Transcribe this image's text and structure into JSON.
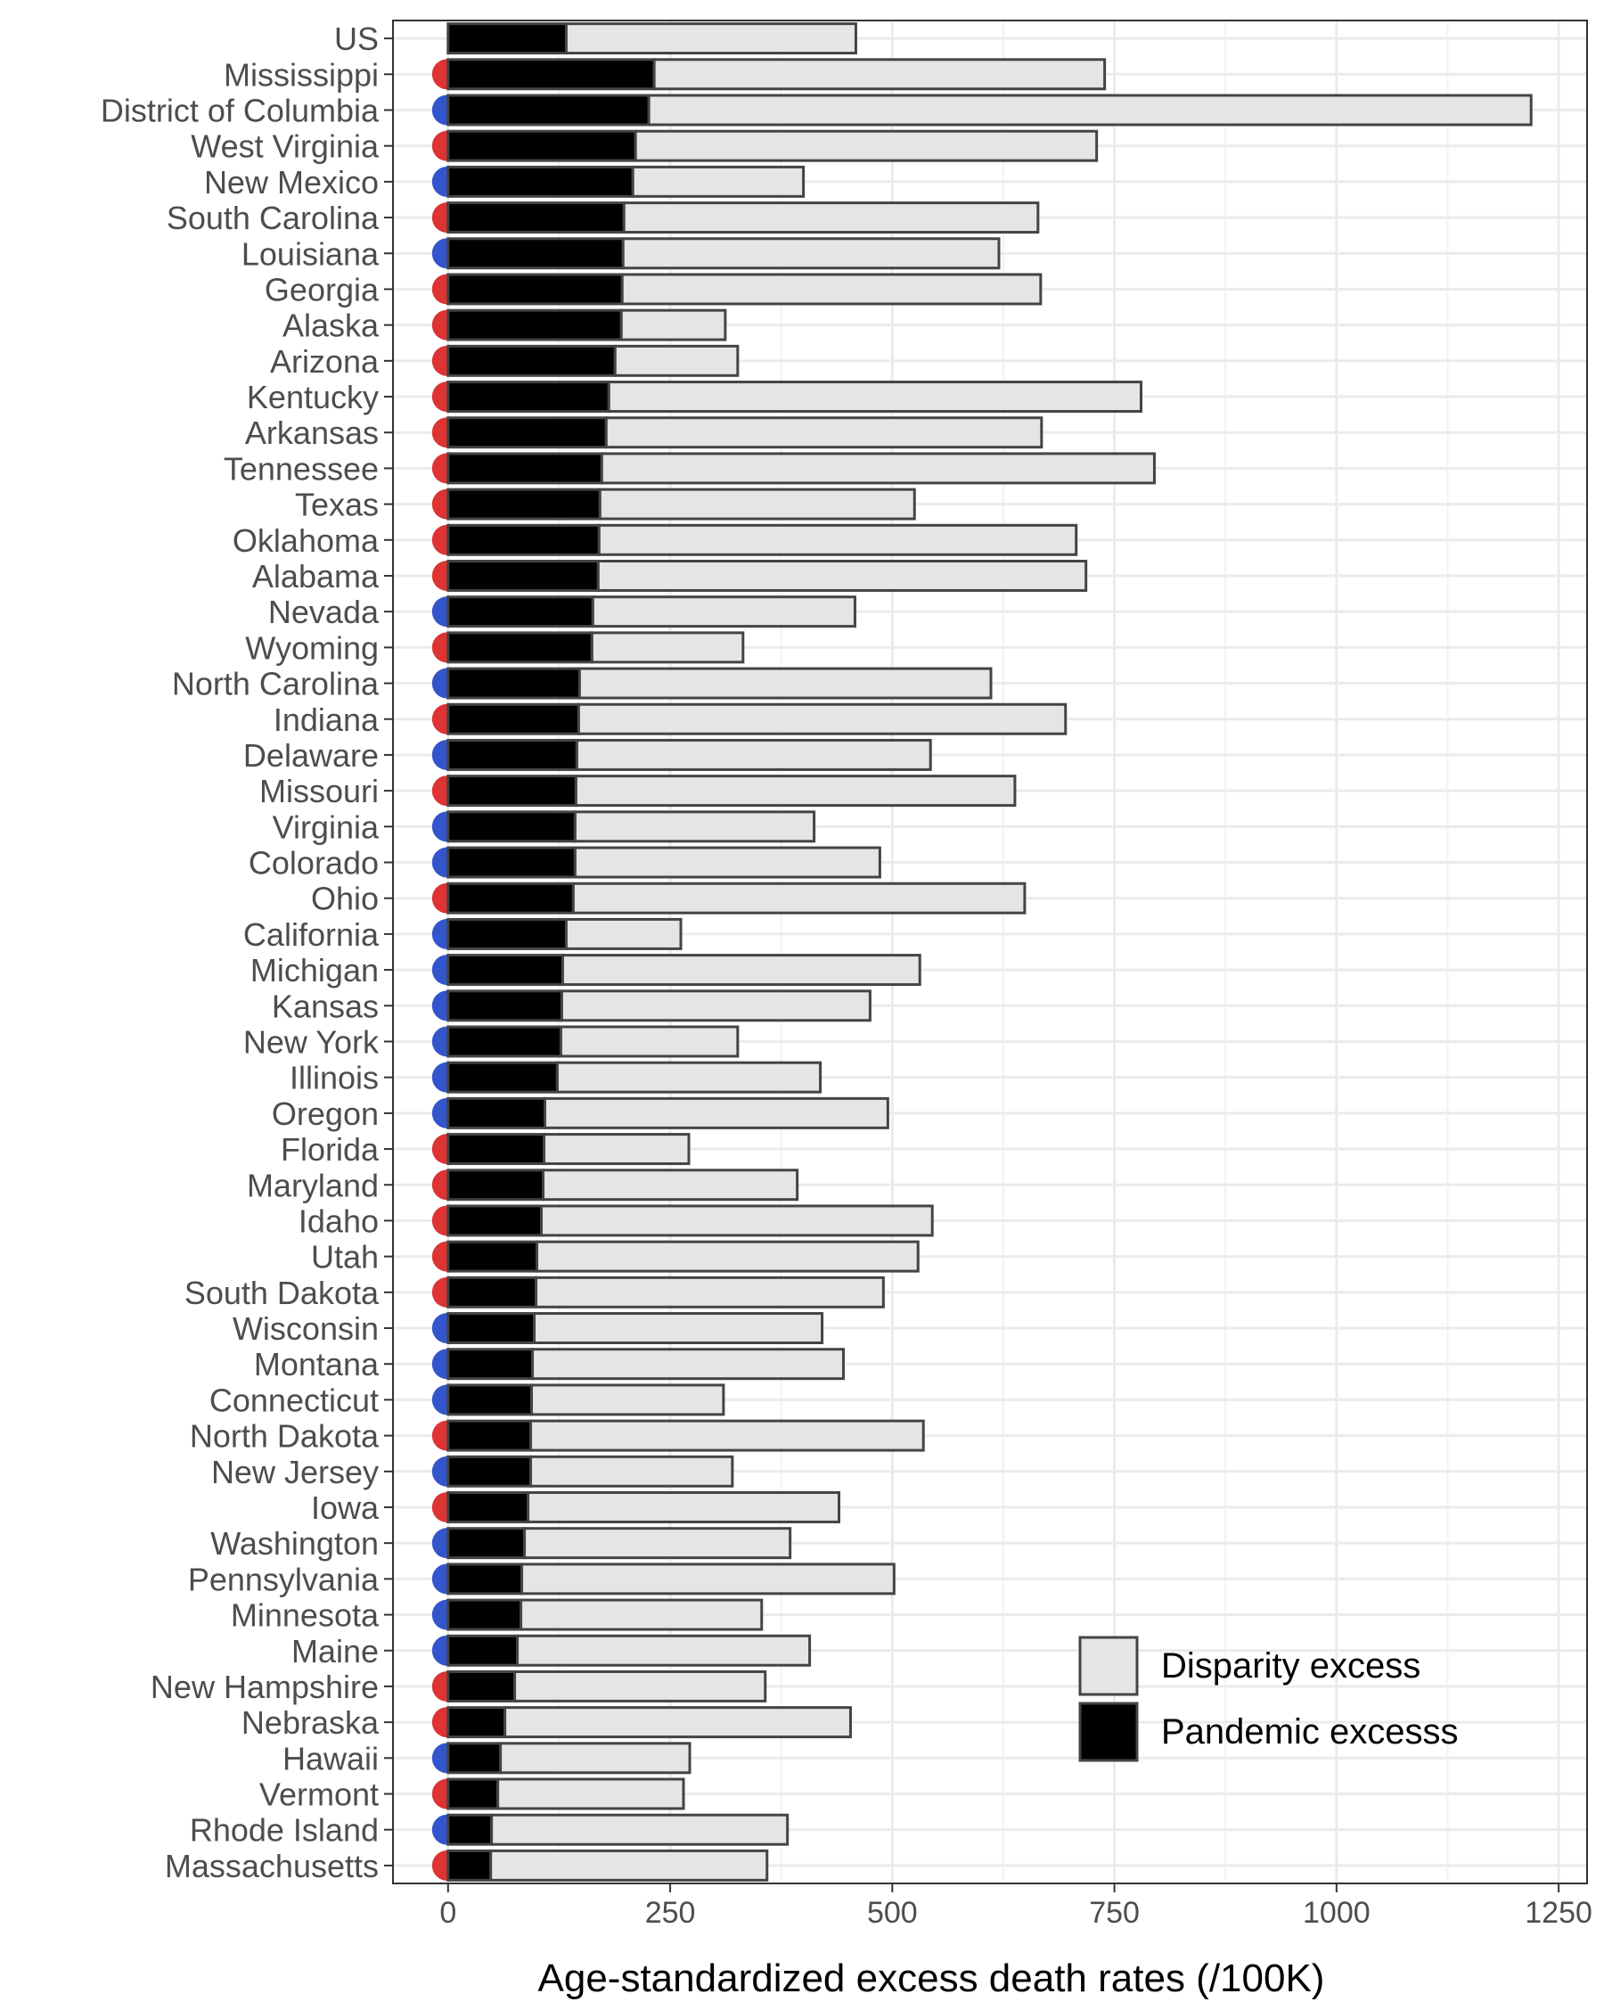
{
  "chart_data": {
    "type": "bar",
    "stacked": true,
    "orientation": "horizontal",
    "title": "",
    "xlabel": "Age-standardized excess death rates (/100K)",
    "ylabel": "",
    "xlim": [
      -62,
      1282
    ],
    "xticks": [
      0,
      250,
      500,
      750,
      1000,
      1250
    ],
    "grid": true,
    "legend_position": "bottom-right",
    "categories": [
      "US",
      "Mississippi",
      "District of Columbia",
      "West Virginia",
      "New Mexico",
      "South Carolina",
      "Louisiana",
      "Georgia",
      "Alaska",
      "Arizona",
      "Kentucky",
      "Arkansas",
      "Tennessee",
      "Texas",
      "Oklahoma",
      "Alabama",
      "Nevada",
      "Wyoming",
      "North Carolina",
      "Indiana",
      "Delaware",
      "Missouri",
      "Virginia",
      "Colorado",
      "Ohio",
      "California",
      "Michigan",
      "Kansas",
      "New York",
      "Illinois",
      "Oregon",
      "Florida",
      "Maryland",
      "Idaho",
      "Utah",
      "South Dakota",
      "Wisconsin",
      "Montana",
      "Connecticut",
      "North Dakota",
      "New Jersey",
      "Iowa",
      "Washington",
      "Pennsylvania",
      "Minnesota",
      "Maine",
      "New Hampshire",
      "Nebraska",
      "Hawaii",
      "Vermont",
      "Rhode Island",
      "Massachusetts"
    ],
    "series": [
      {
        "name": "Pandemic excesss",
        "color": "#000000",
        "values": [
          133,
          232,
          226,
          211,
          208,
          198,
          197,
          196,
          195,
          188,
          181,
          178,
          173,
          171,
          170,
          169,
          163,
          162,
          148,
          147,
          145,
          144,
          143,
          143,
          141,
          133,
          129,
          128,
          127,
          123,
          109,
          108,
          107,
          105,
          100,
          99,
          97,
          95,
          94,
          93,
          93,
          90,
          86,
          83,
          82,
          78,
          75,
          64,
          59,
          56,
          49,
          48
        ]
      },
      {
        "name": "Disparity excess",
        "color": "#e5e5e5",
        "values": [
          326,
          507,
          993,
          519,
          192,
          466,
          423,
          471,
          117,
          138,
          599,
          490,
          622,
          354,
          537,
          549,
          295,
          170,
          463,
          548,
          398,
          494,
          269,
          343,
          508,
          129,
          402,
          347,
          199,
          296,
          386,
          163,
          286,
          440,
          429,
          391,
          324,
          350,
          216,
          442,
          227,
          350,
          299,
          419,
          271,
          329,
          282,
          389,
          213,
          209,
          333,
          311
        ]
      }
    ],
    "group_colors": {
      "red": "#dd3333",
      "blue": "#3355cc"
    },
    "group": [
      "",
      "red",
      "blue",
      "red",
      "blue",
      "red",
      "blue",
      "red",
      "red",
      "red",
      "red",
      "red",
      "red",
      "red",
      "red",
      "red",
      "blue",
      "red",
      "blue",
      "red",
      "blue",
      "red",
      "blue",
      "blue",
      "red",
      "blue",
      "blue",
      "blue",
      "blue",
      "blue",
      "blue",
      "red",
      "red",
      "red",
      "red",
      "red",
      "blue",
      "blue",
      "blue",
      "red",
      "blue",
      "red",
      "blue",
      "blue",
      "blue",
      "blue",
      "red",
      "red",
      "blue",
      "red",
      "blue",
      "red"
    ]
  }
}
